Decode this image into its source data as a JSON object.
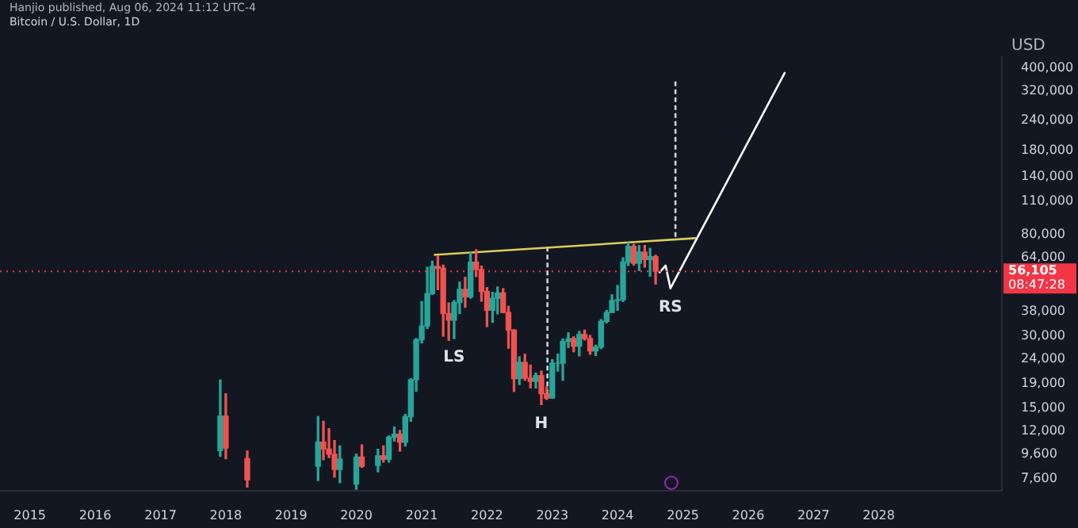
{
  "chart_data": {
    "type": "candlestick",
    "title": "Bitcoin / U.S. Dollar, 1D",
    "subtitle": "Hanjio published, Aug 06, 2024 11:12 UTC-4",
    "ylabel": "USD",
    "x": [
      "2017-12",
      "2018-01",
      "2018-05",
      "2019-06",
      "2019-07",
      "2019-08",
      "2019-09",
      "2019-10",
      "2020-01",
      "2020-02",
      "2020-05",
      "2020-06",
      "2020-07",
      "2020-08",
      "2020-09",
      "2020-10",
      "2020-11",
      "2020-12",
      "2021-01",
      "2021-02",
      "2021-03",
      "2021-04",
      "2021-05",
      "2021-06",
      "2021-07",
      "2021-08",
      "2021-09",
      "2021-10",
      "2021-11",
      "2021-12",
      "2022-01",
      "2022-02",
      "2022-03",
      "2022-04",
      "2022-05",
      "2022-06",
      "2022-07",
      "2022-08",
      "2022-09",
      "2022-10",
      "2022-11",
      "2022-12",
      "2023-01",
      "2023-02",
      "2023-03",
      "2023-04",
      "2023-05",
      "2023-06",
      "2023-07",
      "2023-08",
      "2023-09",
      "2023-10",
      "2023-11",
      "2023-12",
      "2024-01",
      "2024-02",
      "2024-03",
      "2024-04",
      "2024-05",
      "2024-06",
      "2024-07",
      "2024-08"
    ],
    "ohlc": [
      [
        9950,
        19666,
        9400,
        13850
      ],
      [
        13850,
        17200,
        9200,
        10200
      ],
      [
        9200,
        9900,
        7000,
        7500
      ],
      [
        8550,
        13800,
        7450,
        10800
      ],
      [
        10800,
        13200,
        9100,
        10100
      ],
      [
        10100,
        12300,
        9300,
        9600
      ],
      [
        9600,
        10950,
        7700,
        8300
      ],
      [
        8300,
        10400,
        7300,
        9150
      ],
      [
        7200,
        9600,
        6850,
        9350
      ],
      [
        9350,
        10500,
        8450,
        8550
      ],
      [
        8620,
        10070,
        8100,
        9450
      ],
      [
        9450,
        10400,
        8900,
        9140
      ],
      [
        9140,
        11440,
        8900,
        11330
      ],
      [
        11330,
        12470,
        10900,
        11650
      ],
      [
        11650,
        12070,
        9880,
        10780
      ],
      [
        10780,
        14100,
        10400,
        13800
      ],
      [
        13800,
        19900,
        13200,
        19700
      ],
      [
        19700,
        29300,
        17600,
        28990
      ],
      [
        28990,
        41900,
        28100,
        33100
      ],
      [
        33100,
        58300,
        32300,
        45200
      ],
      [
        45200,
        61800,
        44900,
        58800
      ],
      [
        58800,
        64900,
        47000,
        57700
      ],
      [
        57700,
        59500,
        30000,
        37300
      ],
      [
        37300,
        41300,
        28800,
        35000
      ],
      [
        35000,
        42300,
        29300,
        41500
      ],
      [
        41500,
        50500,
        37300,
        47100
      ],
      [
        47100,
        52900,
        39600,
        43800
      ],
      [
        43800,
        67000,
        43300,
        61300
      ],
      [
        61300,
        69000,
        53300,
        57000
      ],
      [
        57000,
        59000,
        42000,
        46200
      ],
      [
        46200,
        47900,
        32900,
        38500
      ],
      [
        38500,
        45800,
        34300,
        43200
      ],
      [
        43200,
        48200,
        37200,
        45500
      ],
      [
        45500,
        47400,
        37600,
        37700
      ],
      [
        37700,
        40000,
        26700,
        31800
      ],
      [
        31800,
        31900,
        17600,
        19900
      ],
      [
        19900,
        24600,
        18800,
        23300
      ],
      [
        23300,
        25200,
        19600,
        20000
      ],
      [
        20000,
        22700,
        18200,
        19400
      ],
      [
        19400,
        21000,
        18200,
        20500
      ],
      [
        20500,
        21400,
        15500,
        17200
      ],
      [
        17200,
        18400,
        16300,
        16500
      ],
      [
        16500,
        23900,
        16500,
        23100
      ],
      [
        23100,
        25200,
        21400,
        23100
      ],
      [
        23100,
        29200,
        19600,
        28500
      ],
      [
        28500,
        31000,
        26900,
        29300
      ],
      [
        29300,
        29800,
        25800,
        27200
      ],
      [
        27200,
        31400,
        24800,
        30500
      ],
      [
        30500,
        31800,
        28900,
        29300
      ],
      [
        29300,
        30200,
        25200,
        26000
      ],
      [
        26000,
        27500,
        24900,
        27000
      ],
      [
        27000,
        35200,
        26600,
        34600
      ],
      [
        34600,
        38400,
        34100,
        37700
      ],
      [
        37700,
        44700,
        37600,
        42300
      ],
      [
        42300,
        48900,
        38500,
        42600
      ],
      [
        42600,
        63900,
        41900,
        61300
      ],
      [
        61300,
        73800,
        59300,
        71300
      ],
      [
        71300,
        72700,
        59600,
        60600
      ],
      [
        60600,
        71900,
        56500,
        67500
      ],
      [
        67500,
        71900,
        58400,
        62800
      ],
      [
        62800,
        70000,
        53500,
        64600
      ],
      [
        64600,
        65500,
        49600,
        56100
      ]
    ],
    "series": [
      {
        "type": "line",
        "color": "#d9cf5a",
        "x": [
          "2021-03-10",
          "2025-03-15"
        ],
        "values": [
          65700,
          77200
        ]
      },
      {
        "type": "line",
        "line_style": "dashed",
        "color": "#d1d4dc",
        "x": [
          "2022-12-05",
          "2022-12-05"
        ],
        "values": [
          71000,
          16500
        ]
      },
      {
        "type": "line",
        "line_style": "dashed",
        "color": "#d1d4dc",
        "x": [
          "2024-11-20",
          "2024-11-20"
        ],
        "values": [
          350000,
          77000
        ]
      },
      {
        "type": "line",
        "color": "#ffffff",
        "x": [
          "2024-08-20",
          "2024-09-26",
          "2024-10-23",
          "2026-07-26"
        ],
        "values": [
          55100,
          59300,
          47600,
          383000
        ]
      }
    ],
    "log": "y",
    "marker": "none",
    "grid": false,
    "legend": false,
    "xlim": [
      "2014-07-18",
      "2029-11-20"
    ],
    "ylim": [
      6760,
      443000
    ],
    "xticks": [
      {
        "value": "2015",
        "label": "2015"
      },
      {
        "value": "2016",
        "label": "2016"
      },
      {
        "value": "2017",
        "label": "2017"
      },
      {
        "value": "2018",
        "label": "2018"
      },
      {
        "value": "2019",
        "label": "2019"
      },
      {
        "value": "2020",
        "label": "2020"
      },
      {
        "value": "2021",
        "label": "2021"
      },
      {
        "value": "2022",
        "label": "2022"
      },
      {
        "value": "2023",
        "label": "2023"
      },
      {
        "value": "2024",
        "label": "2024"
      },
      {
        "value": "2025",
        "label": "2025"
      },
      {
        "value": "2026",
        "label": "2026"
      },
      {
        "value": "2027",
        "label": "2027"
      },
      {
        "value": "2028",
        "label": "2028"
      }
    ],
    "yticks": [
      {
        "value": 7600,
        "label": "7,600"
      },
      {
        "value": 9600,
        "label": "9,600"
      },
      {
        "value": 12000,
        "label": "12,000"
      },
      {
        "value": 15000,
        "label": "15,000"
      },
      {
        "value": 19000,
        "label": "19,000"
      },
      {
        "value": 24000,
        "label": "24,000"
      },
      {
        "value": 30000,
        "label": "30,000"
      },
      {
        "value": 38000,
        "label": "38,000"
      },
      {
        "value": 64000,
        "label": "64,000"
      },
      {
        "value": 80000,
        "label": "80,000"
      },
      {
        "value": 110000,
        "label": "110,000"
      },
      {
        "value": 140000,
        "label": "140,000"
      },
      {
        "value": 180000,
        "label": "180,000"
      },
      {
        "value": 240000,
        "label": "240,000"
      },
      {
        "value": 320000,
        "label": "320,000"
      },
      {
        "value": 400000,
        "label": "400,000"
      }
    ],
    "ref_lines": [
      {
        "axis": "y",
        "value": 56105,
        "label": "56,105",
        "color": "#f23645"
      }
    ],
    "annotations": [
      {
        "text": "LS",
        "x": "2021-07",
        "y": 29300
      },
      {
        "text": "H",
        "x": "2022-11",
        "y": 15500
      },
      {
        "text": "RS",
        "x": "2024-10-23",
        "y": 47600
      },
      "08:47:28"
    ]
  }
}
